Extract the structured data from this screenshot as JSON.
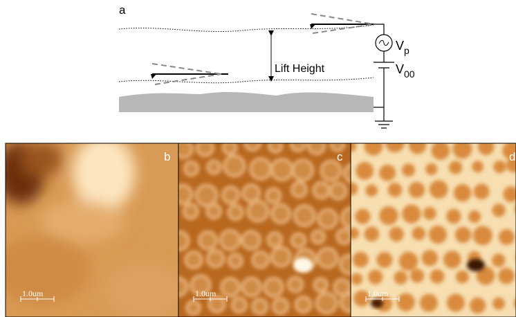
{
  "diagram": {
    "panel_label": "a",
    "lift_label": "Lift Height",
    "source": {
      "symbol": "V",
      "subscript": "p"
    },
    "bias": {
      "symbol": "V",
      "subscript": "00"
    }
  },
  "images": [
    {
      "label": "b",
      "scale_bar": "1.0um"
    },
    {
      "label": "c",
      "scale_bar": "1.0um"
    },
    {
      "label": "d",
      "scale_bar": "1.0um"
    }
  ]
}
